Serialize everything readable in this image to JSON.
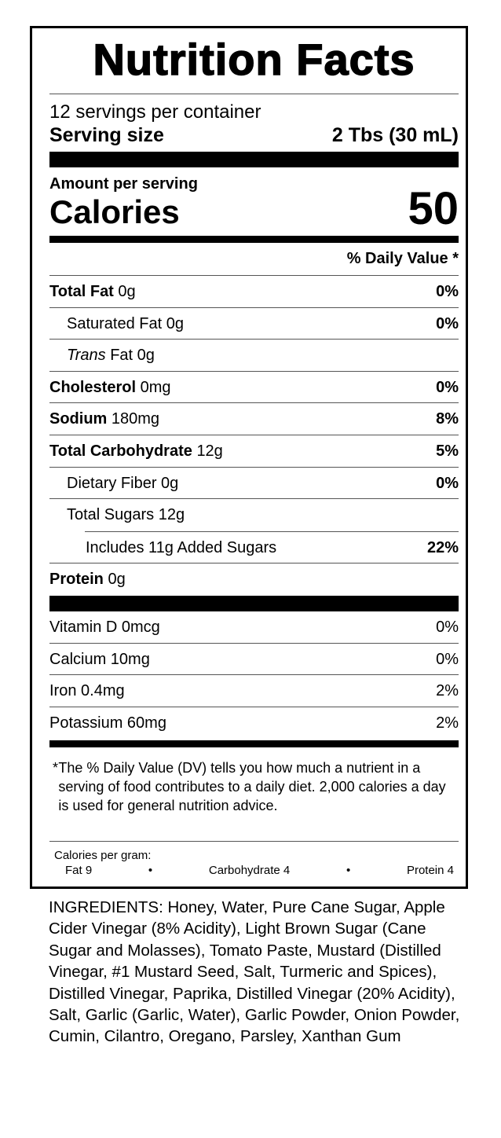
{
  "title": "Nutrition Facts",
  "servings_per_container": "12 servings per container",
  "serving_size": {
    "label": "Serving size",
    "value": "2 Tbs (30 mL)"
  },
  "amount_per_serving": "Amount per serving",
  "calories": {
    "label": "Calories",
    "value": "50"
  },
  "daily_value_header": "% Daily Value *",
  "nutrients": [
    {
      "name": "Total Fat",
      "amount": "0g",
      "dv": "0%"
    },
    {
      "name": "Saturated Fat",
      "amount": "0g",
      "dv": "0%"
    },
    {
      "name": "Trans",
      "name_suffix": "Fat 0g",
      "dv": ""
    },
    {
      "name": "Cholesterol",
      "amount": "0mg",
      "dv": "0%"
    },
    {
      "name": "Sodium",
      "amount": "180mg",
      "dv": "8%"
    },
    {
      "name": "Total Carbohydrate",
      "amount": "12g",
      "dv": "5%"
    },
    {
      "name": "Dietary Fiber",
      "amount": "0g",
      "dv": "0%"
    },
    {
      "name": "Total Sugars",
      "amount": "12g",
      "dv": ""
    },
    {
      "name": "Includes 11g Added Sugars",
      "dv": "22%"
    },
    {
      "name": "Protein",
      "amount": "0g",
      "dv": ""
    }
  ],
  "vitamins": [
    {
      "name": "Vitamin D 0mcg",
      "dv": "0%"
    },
    {
      "name": "Calcium 10mg",
      "dv": "0%"
    },
    {
      "name": "Iron 0.4mg",
      "dv": "2%"
    },
    {
      "name": "Potassium 60mg",
      "dv": "2%"
    }
  ],
  "footnote": {
    "star": "*",
    "text": "The % Daily Value (DV) tells you how much a nutrient in a serving of food contributes to a daily diet. 2,000 calories a day is used for general nutrition advice."
  },
  "calories_per_gram": {
    "label": "Calories per gram:",
    "fat": "Fat 9",
    "bullet": "•",
    "carbohydrate": "Carbohydrate 4",
    "protein": "Protein 4"
  },
  "ingredients": "INGREDIENTS: Honey, Water, Pure Cane Sugar, Apple Cider Vinegar (8% Acidity), Light Brown Sugar (Cane Sugar and Molasses), Tomato Paste, Mustard (Distilled Vinegar, #1 Mustard Seed, Salt, Turmeric and Spices), Distilled Vinegar, Paprika, Distilled Vinegar (20% Acidity), Salt, Garlic (Garlic, Water), Garlic Powder, Onion Powder, Cumin, Cilantro, Oregano, Parsley, Xanthan Gum"
}
